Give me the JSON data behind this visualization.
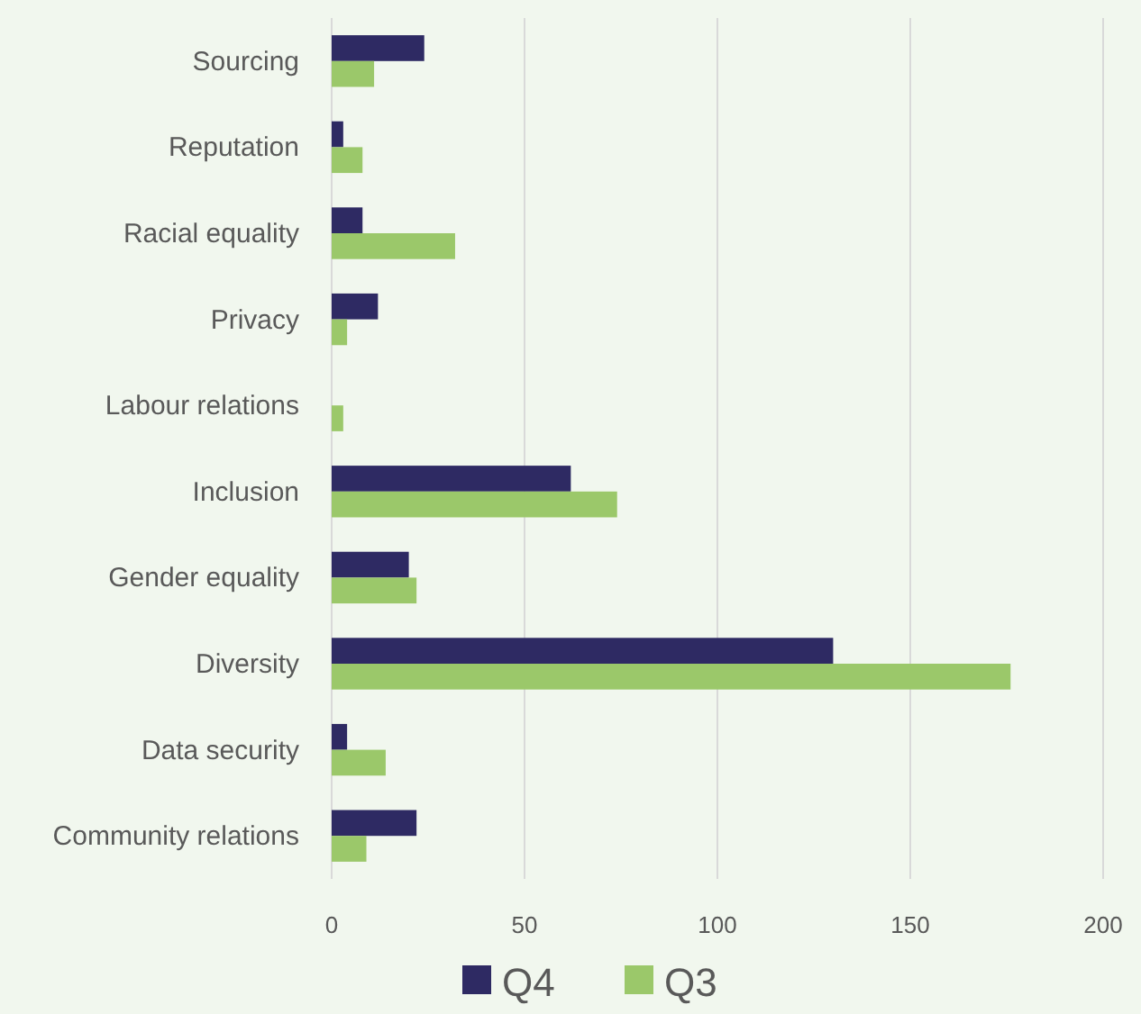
{
  "chart_data": {
    "type": "bar",
    "orientation": "horizontal",
    "categories": [
      "Sourcing",
      "Reputation",
      "Racial equality",
      "Privacy",
      "Labour relations",
      "Inclusion",
      "Gender equality",
      "Diversity",
      "Data security",
      "Community relations"
    ],
    "series": [
      {
        "name": "Q4",
        "color": "#2e2a63",
        "values": [
          24,
          3,
          8,
          12,
          0,
          62,
          20,
          130,
          4,
          22
        ]
      },
      {
        "name": "Q3",
        "color": "#9bc86a",
        "values": [
          11,
          8,
          32,
          4,
          3,
          74,
          22,
          176,
          14,
          9
        ]
      }
    ],
    "xlim": [
      0,
      200
    ],
    "xticks": [
      0,
      50,
      100,
      150,
      200
    ],
    "grid": "x",
    "legend": "bottom"
  }
}
